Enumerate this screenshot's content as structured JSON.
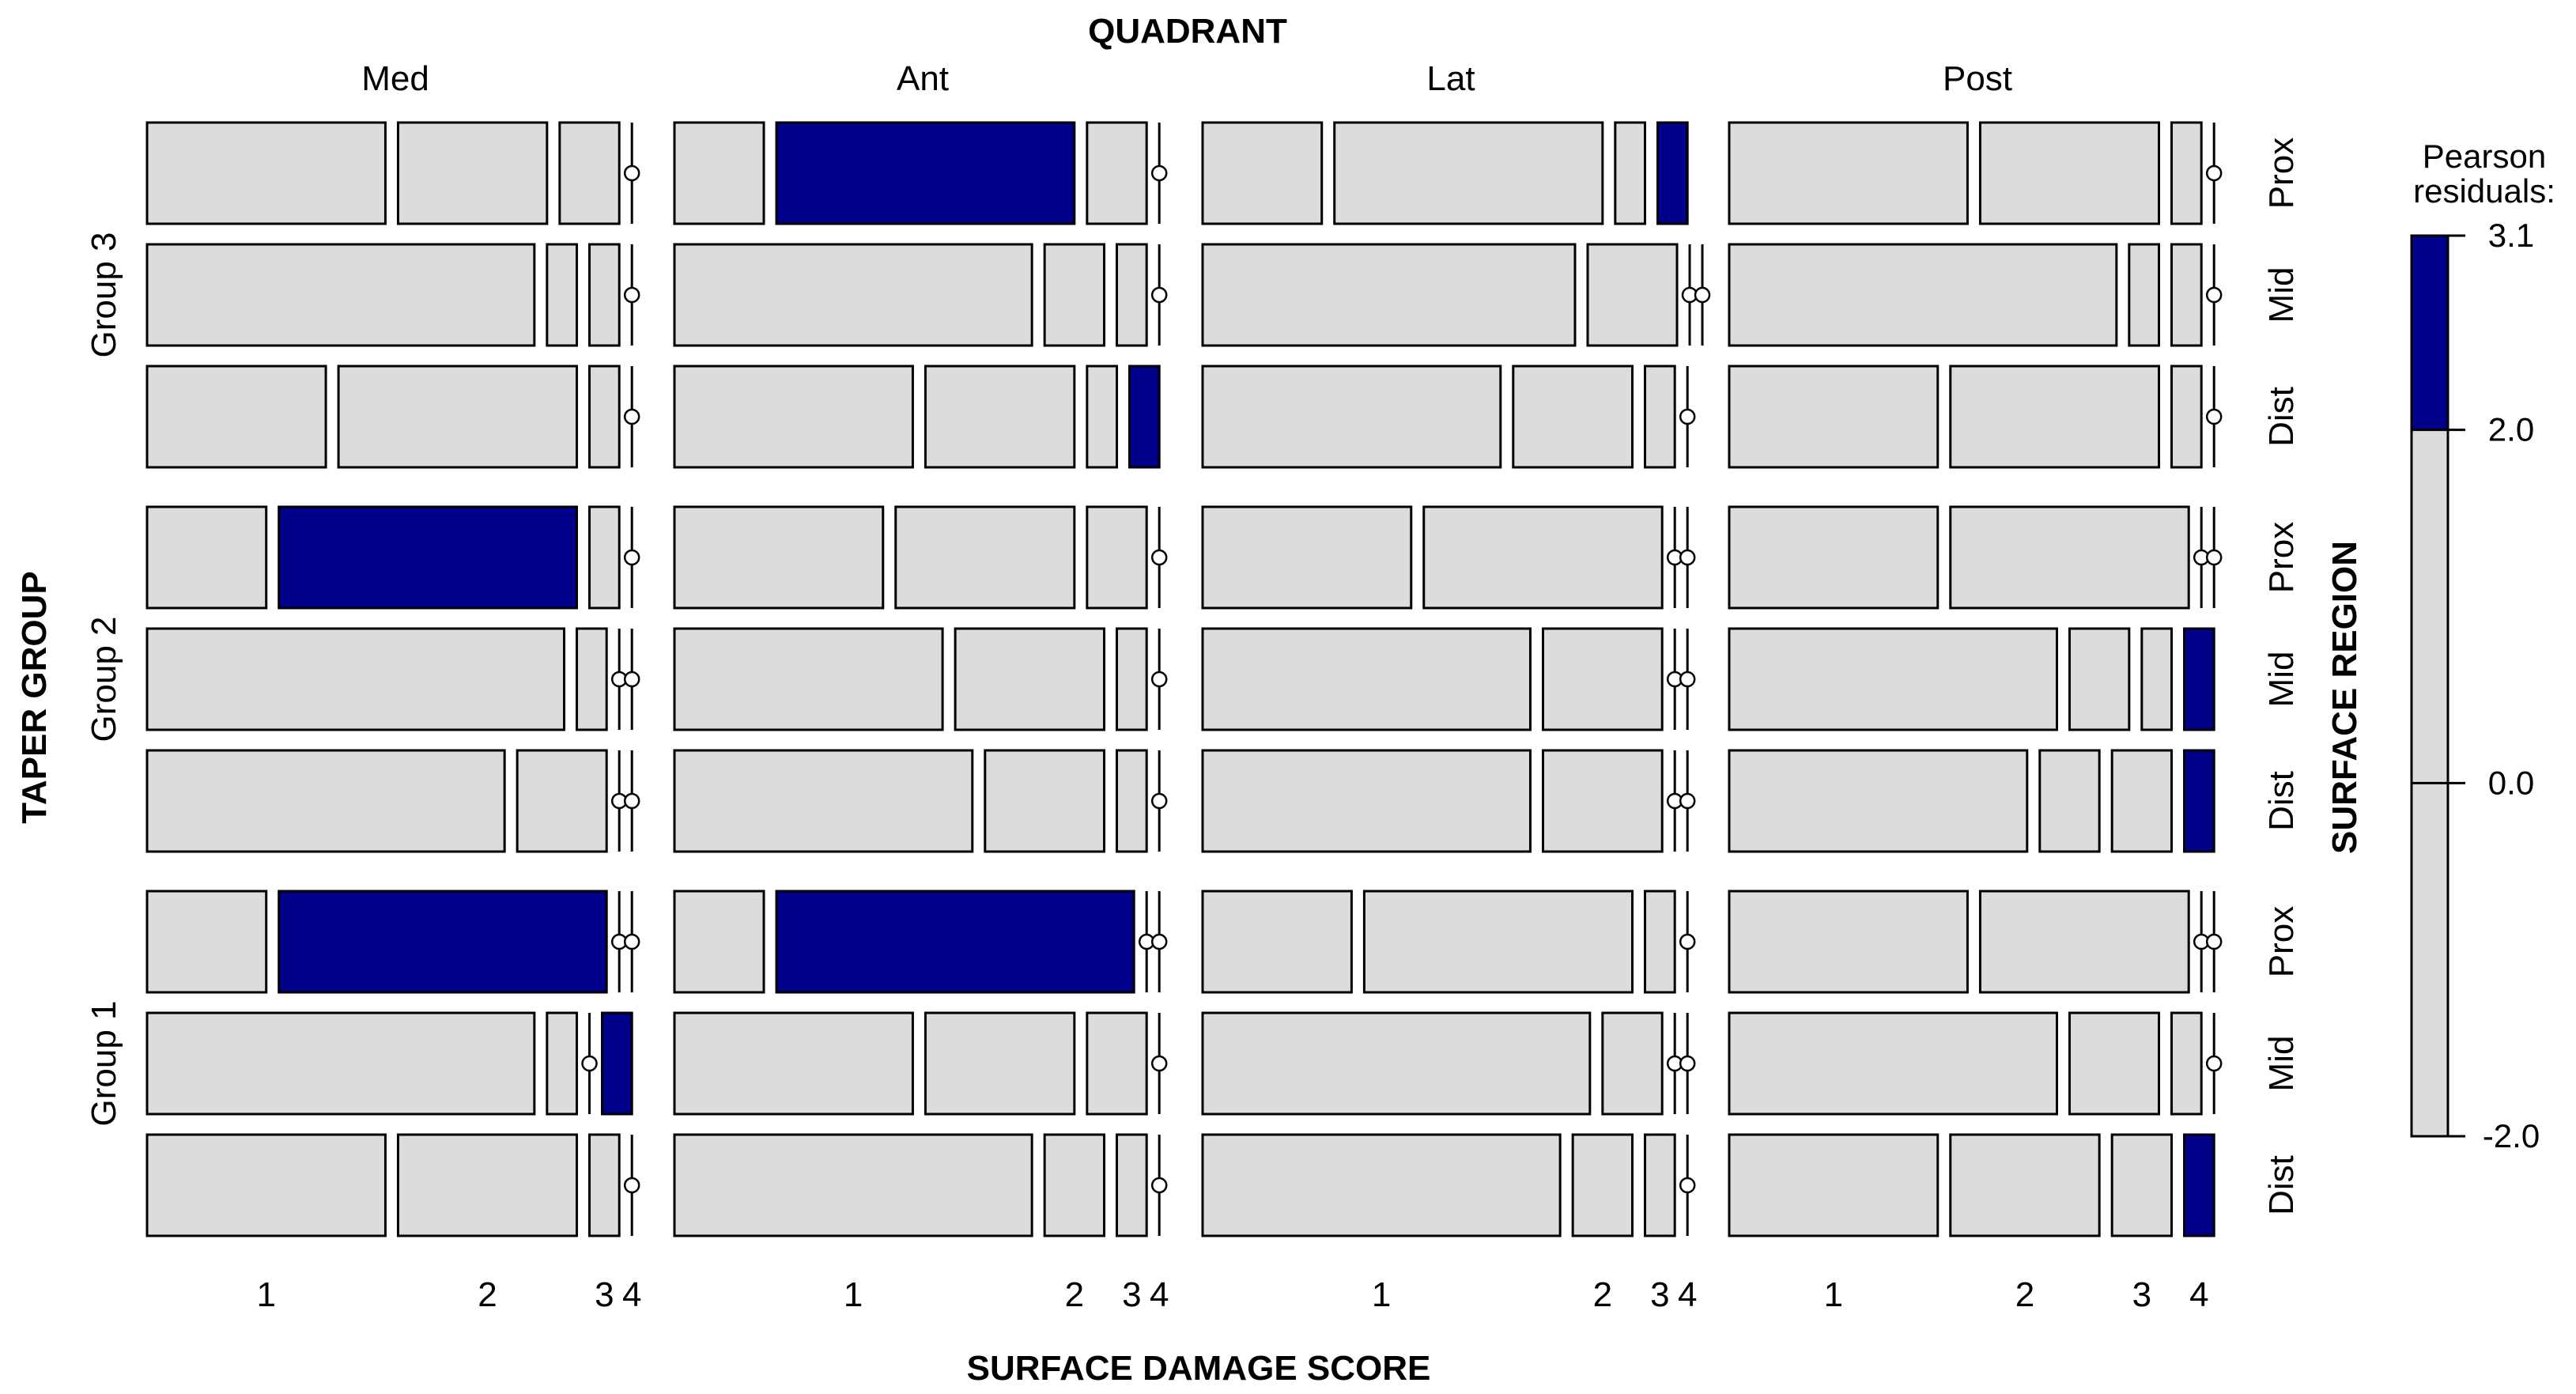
{
  "chart_data": {
    "type": "mosaic",
    "top_title": "QUADRANT",
    "left_title": "TAPER GROUP",
    "bottom_title": "SURFACE DAMAGE SCORE",
    "right_title": "SURFACE REGION",
    "quadrants": [
      "Med",
      "Ant",
      "Lat",
      "Post"
    ],
    "groups": [
      "Group 3",
      "Group 2",
      "Group 1"
    ],
    "regions": [
      "Prox",
      "Mid",
      "Dist"
    ],
    "score_labels": [
      "1",
      "2",
      "3",
      "4"
    ],
    "legend": {
      "title_lines": [
        "Pearson",
        "residuals:"
      ],
      "max": 3.1,
      "min": -2.0,
      "threshold": 2.0,
      "tick_labels": [
        "3.1",
        "2.0",
        "0.0",
        "-2.0"
      ],
      "tick_values": [
        3.1,
        2.0,
        0.0,
        -2.0
      ]
    },
    "colors": {
      "high_residual": "#00008b",
      "neutral": "#dcdcdc",
      "border": "#000000"
    },
    "cells": {
      "Group 3": {
        "Med": {
          "Prox": {
            "p": [
              0.48,
              0.3,
              0.12,
              0.0
            ],
            "h": [
              0,
              0,
              0,
              0
            ]
          },
          "Mid": {
            "p": [
              0.78,
              0.06,
              0.06,
              0.0
            ],
            "h": [
              0,
              0,
              0,
              0
            ]
          },
          "Dist": {
            "p": [
              0.36,
              0.48,
              0.06,
              0.0
            ],
            "h": [
              0,
              0,
              0,
              0
            ]
          }
        },
        "Ant": {
          "Prox": {
            "p": [
              0.18,
              0.6,
              0.12,
              0.0
            ],
            "h": [
              0,
              1,
              0,
              0
            ]
          },
          "Mid": {
            "p": [
              0.72,
              0.12,
              0.06,
              0.0
            ],
            "h": [
              0,
              0,
              0,
              0
            ]
          },
          "Dist": {
            "p": [
              0.48,
              0.3,
              0.06,
              0.06
            ],
            "h": [
              0,
              0,
              0,
              1
            ]
          }
        },
        "Lat": {
          "Prox": {
            "p": [
              0.24,
              0.54,
              0.06,
              0.06
            ],
            "h": [
              0,
              0,
              0,
              1
            ]
          },
          "Mid": {
            "p": [
              0.75,
              0.18,
              0.0,
              0.0
            ],
            "h": [
              0,
              0,
              0,
              0
            ]
          },
          "Dist": {
            "p": [
              0.6,
              0.24,
              0.06,
              0.0
            ],
            "h": [
              0,
              0,
              0,
              0
            ]
          }
        },
        "Post": {
          "Prox": {
            "p": [
              0.48,
              0.36,
              0.06,
              0.0
            ],
            "h": [
              0,
              0,
              0,
              0
            ]
          },
          "Mid": {
            "p": [
              0.78,
              0.06,
              0.06,
              0.0
            ],
            "h": [
              0,
              0,
              0,
              0
            ]
          },
          "Dist": {
            "p": [
              0.42,
              0.42,
              0.06,
              0.0
            ],
            "h": [
              0,
              0,
              0,
              0
            ]
          }
        }
      },
      "Group 2": {
        "Med": {
          "Prox": {
            "p": [
              0.24,
              0.6,
              0.06,
              0.0
            ],
            "h": [
              0,
              1,
              0,
              0
            ]
          },
          "Mid": {
            "p": [
              0.84,
              0.06,
              0.0,
              0.0
            ],
            "h": [
              0,
              0,
              0,
              0
            ]
          },
          "Dist": {
            "p": [
              0.72,
              0.18,
              0.0,
              0.0
            ],
            "h": [
              0,
              0,
              0,
              0
            ]
          }
        },
        "Ant": {
          "Prox": {
            "p": [
              0.42,
              0.36,
              0.12,
              0.0
            ],
            "h": [
              0,
              0,
              0,
              0
            ]
          },
          "Mid": {
            "p": [
              0.54,
              0.3,
              0.06,
              0.0
            ],
            "h": [
              0,
              0,
              0,
              0
            ]
          },
          "Dist": {
            "p": [
              0.6,
              0.24,
              0.06,
              0.0
            ],
            "h": [
              0,
              0,
              0,
              0
            ]
          }
        },
        "Lat": {
          "Prox": {
            "p": [
              0.42,
              0.48,
              0.0,
              0.0
            ],
            "h": [
              0,
              0,
              0,
              0
            ]
          },
          "Mid": {
            "p": [
              0.66,
              0.24,
              0.0,
              0.0
            ],
            "h": [
              0,
              0,
              0,
              0
            ]
          },
          "Dist": {
            "p": [
              0.66,
              0.24,
              0.0,
              0.0
            ],
            "h": [
              0,
              0,
              0,
              0
            ]
          }
        },
        "Post": {
          "Prox": {
            "p": [
              0.42,
              0.48,
              0.0,
              0.0
            ],
            "h": [
              0,
              0,
              0,
              0
            ]
          },
          "Mid": {
            "p": [
              0.66,
              0.12,
              0.06,
              0.06
            ],
            "h": [
              0,
              0,
              0,
              1
            ]
          },
          "Dist": {
            "p": [
              0.6,
              0.12,
              0.12,
              0.06
            ],
            "h": [
              0,
              0,
              0,
              1
            ]
          }
        }
      },
      "Group 1": {
        "Med": {
          "Prox": {
            "p": [
              0.24,
              0.66,
              0.0,
              0.0
            ],
            "h": [
              0,
              1,
              0,
              0
            ]
          },
          "Mid": {
            "p": [
              0.78,
              0.06,
              0.0,
              0.06
            ],
            "h": [
              0,
              0,
              0,
              1
            ]
          },
          "Dist": {
            "p": [
              0.48,
              0.36,
              0.06,
              0.0
            ],
            "h": [
              0,
              0,
              0,
              0
            ]
          }
        },
        "Ant": {
          "Prox": {
            "p": [
              0.18,
              0.72,
              0.0,
              0.0
            ],
            "h": [
              0,
              1,
              0,
              0
            ]
          },
          "Mid": {
            "p": [
              0.48,
              0.3,
              0.12,
              0.0
            ],
            "h": [
              0,
              0,
              0,
              0
            ]
          },
          "Dist": {
            "p": [
              0.72,
              0.12,
              0.06,
              0.0
            ],
            "h": [
              0,
              0,
              0,
              0
            ]
          }
        },
        "Lat": {
          "Prox": {
            "p": [
              0.3,
              0.54,
              0.06,
              0.0
            ],
            "h": [
              0,
              0,
              0,
              0
            ]
          },
          "Mid": {
            "p": [
              0.78,
              0.12,
              0.0,
              0.0
            ],
            "h": [
              0,
              0,
              0,
              0
            ]
          },
          "Dist": {
            "p": [
              0.72,
              0.12,
              0.06,
              0.0
            ],
            "h": [
              0,
              0,
              0,
              0
            ]
          }
        },
        "Post": {
          "Prox": {
            "p": [
              0.48,
              0.42,
              0.0,
              0.0
            ],
            "h": [
              0,
              0,
              0,
              0
            ]
          },
          "Mid": {
            "p": [
              0.66,
              0.18,
              0.06,
              0.0
            ],
            "h": [
              0,
              0,
              0,
              0
            ]
          },
          "Dist": {
            "p": [
              0.42,
              0.3,
              0.12,
              0.06
            ],
            "h": [
              0,
              0,
              0,
              1
            ]
          }
        }
      }
    }
  }
}
